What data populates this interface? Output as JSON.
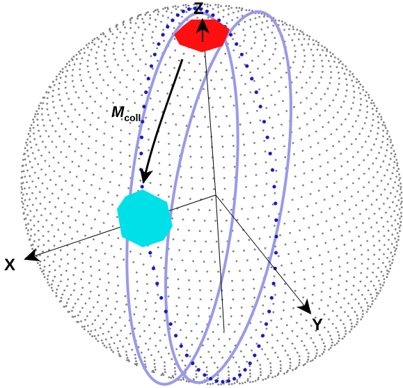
{
  "axes": {
    "z": "Z",
    "x": "X",
    "y": "Y"
  },
  "annotation": {
    "symbol": "M",
    "subscript": "coll"
  }
}
